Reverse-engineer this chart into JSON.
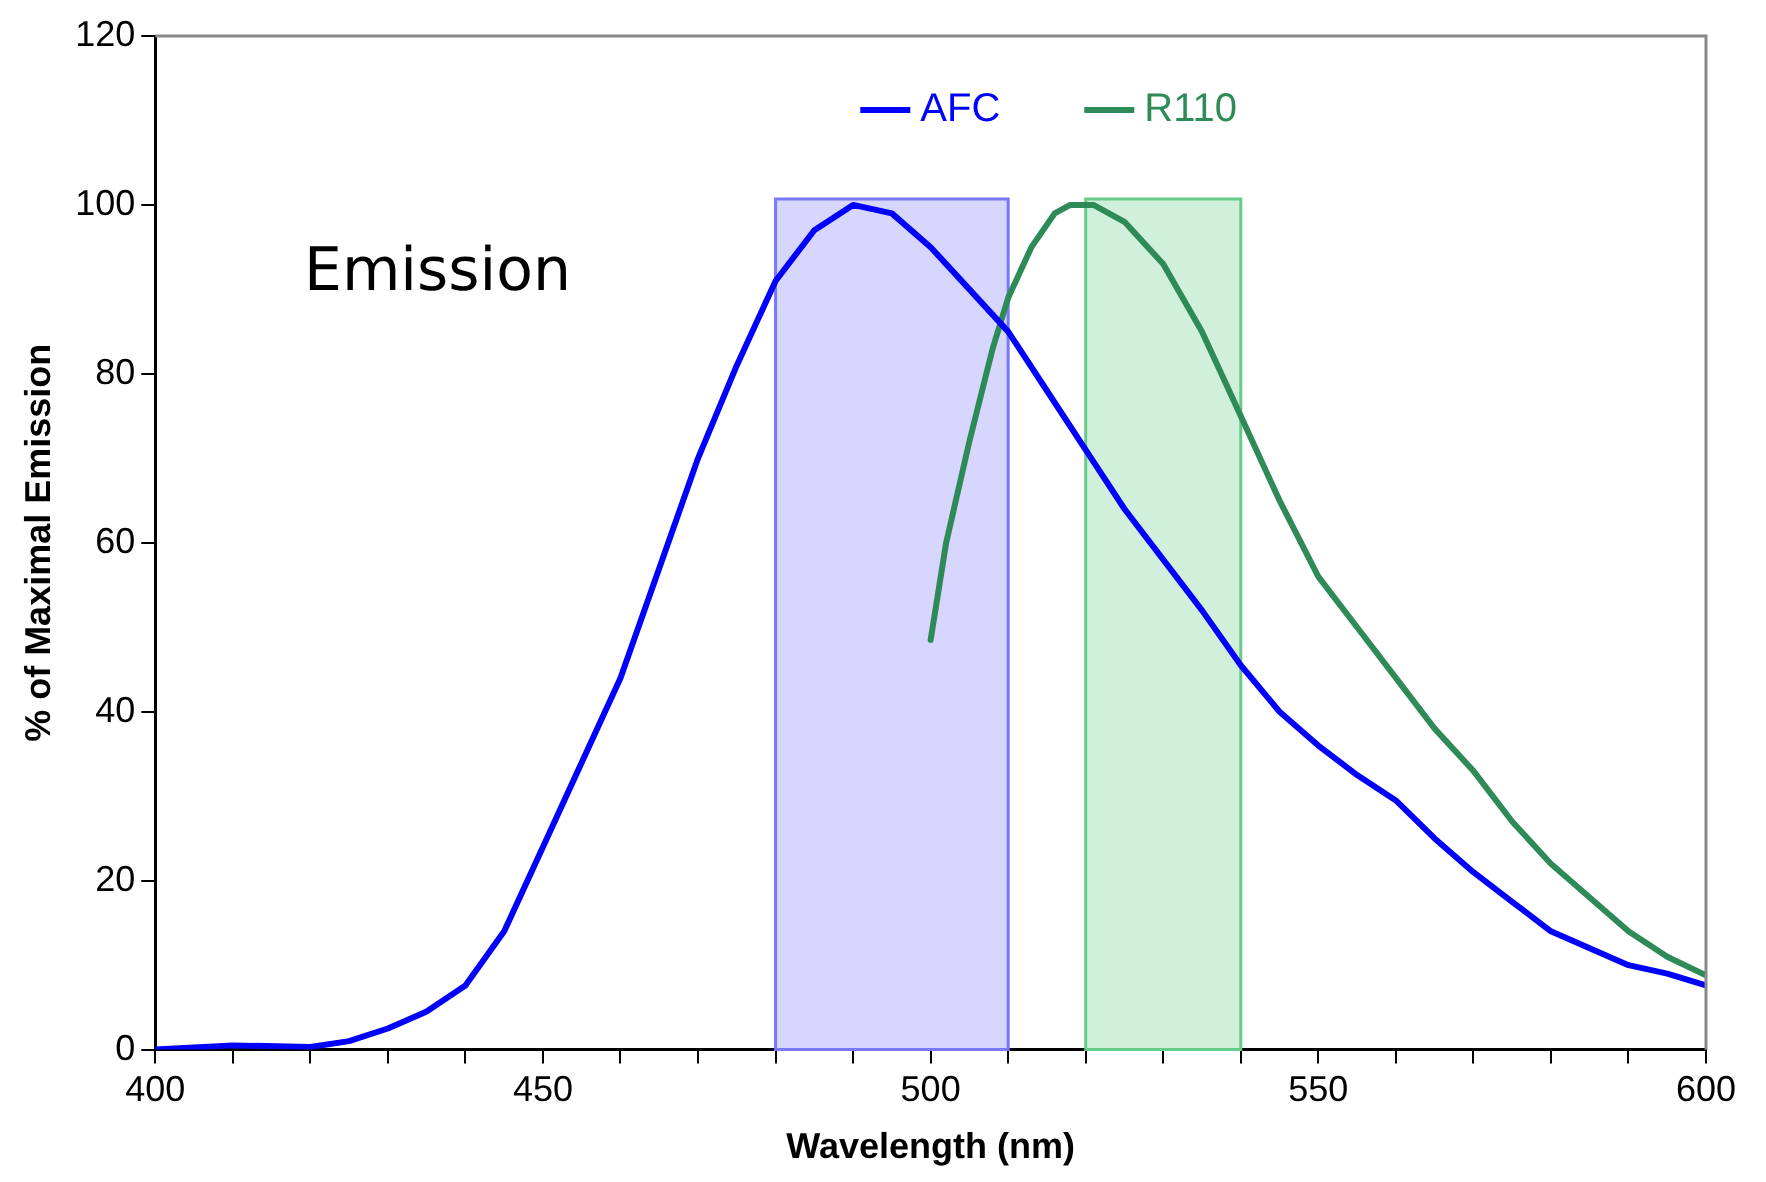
{
  "chart_data": {
    "type": "line",
    "xlabel": "Wavelength (nm)",
    "ylabel": "% of Maximal Emission",
    "annotations": [
      "Emission"
    ],
    "xlim": [
      400,
      600
    ],
    "xticks": [
      400,
      {
        "value": 410,
        "label": null
      },
      {
        "value": 420,
        "label": null
      },
      {
        "value": 430,
        "label": null
      },
      {
        "value": 440,
        "label": null
      },
      450,
      {
        "value": 460,
        "label": null
      },
      {
        "value": 470,
        "label": null
      },
      {
        "value": 480,
        "label": null
      },
      {
        "value": 490,
        "label": null
      },
      500,
      {
        "value": 510,
        "label": null
      },
      {
        "value": 520,
        "label": null
      },
      {
        "value": 530,
        "label": null
      },
      {
        "value": 540,
        "label": null
      },
      550,
      {
        "value": 560,
        "label": null
      },
      {
        "value": 570,
        "label": null
      },
      {
        "value": 580,
        "label": null
      },
      {
        "value": 590,
        "label": null
      },
      600
    ],
    "ylim": [
      0,
      120
    ],
    "yticks": [
      0,
      20,
      40,
      60,
      80,
      100,
      120
    ],
    "grid": false,
    "legend": "top",
    "marker": "none",
    "line_style": "solid",
    "bands": [
      {
        "axis": "x",
        "from": 480,
        "to": 510,
        "color": "#7777ff"
      },
      {
        "axis": "x",
        "from": 520,
        "to": 540,
        "color": "#66cc88"
      }
    ],
    "series": [
      {
        "name": "AFC",
        "color": "#0000ff",
        "x": [
          400,
          410,
          420,
          425,
          430,
          435,
          440,
          445,
          450,
          455,
          460,
          465,
          470,
          475,
          480,
          485,
          490,
          495,
          500,
          505,
          510,
          515,
          520,
          525,
          530,
          535,
          540,
          545,
          550,
          555,
          560,
          565,
          570,
          575,
          580,
          585,
          590,
          595,
          600
        ],
        "values": [
          0,
          0.5,
          0.3,
          1,
          2.5,
          4.5,
          7.6,
          14,
          24,
          34,
          44,
          57,
          70,
          81,
          91,
          97,
          100,
          99,
          95,
          90,
          85,
          78,
          71,
          64,
          58,
          52,
          45.5,
          40,
          36,
          32.5,
          29.5,
          25,
          21,
          17.5,
          14,
          12,
          10,
          9,
          7.6
        ]
      },
      {
        "name": "R110",
        "color": "#2e8b57",
        "x": [
          500,
          502,
          505,
          508,
          510,
          513,
          516,
          518,
          521,
          525,
          530,
          535,
          540,
          545,
          550,
          555,
          560,
          565,
          570,
          575,
          580,
          585,
          590,
          595,
          600
        ],
        "values": [
          48.5,
          60,
          72,
          83,
          89,
          95,
          99,
          100,
          100,
          98,
          93,
          85,
          75,
          65,
          56,
          50,
          44,
          38,
          33,
          27,
          22,
          18,
          14,
          11,
          8.8
        ]
      }
    ]
  }
}
